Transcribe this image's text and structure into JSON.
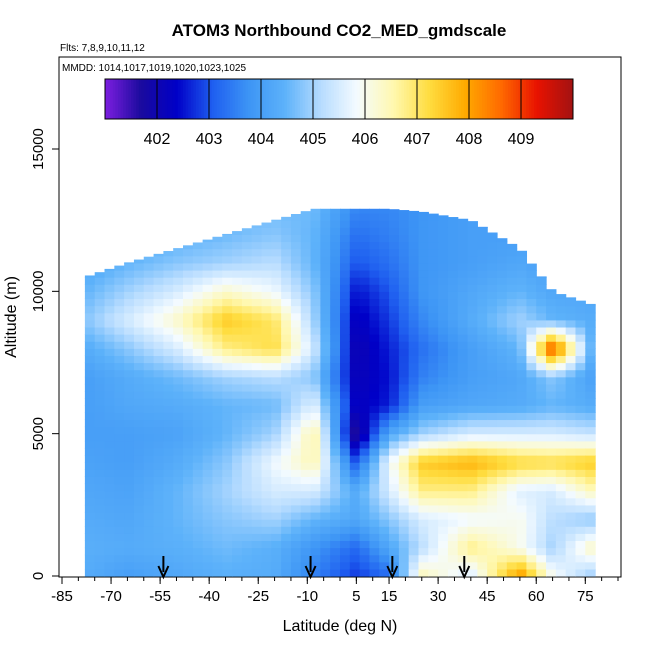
{
  "chart_data": {
    "type": "heatmap",
    "title": "ATOM3 Northbound CO2_MED_gmdscale",
    "subtitle_flights": "Flts: 7,8,9,10,11,12",
    "subtitle_dates": "MMDD: 1014,1017,1019,1020,1023,1025",
    "xlabel": "Latitude (deg N)",
    "ylabel": "Altitude (m)",
    "xlim": [
      -85,
      85
    ],
    "ylim": [
      0,
      18000
    ],
    "x_ticks": [
      -85,
      -70,
      -55,
      -40,
      -25,
      -10,
      5,
      15,
      30,
      45,
      60,
      75
    ],
    "y_ticks": [
      0,
      5000,
      10000,
      15000
    ],
    "colorbar": {
      "range": [
        401,
        410
      ],
      "ticks": [
        402,
        403,
        404,
        405,
        406,
        407,
        408,
        409
      ],
      "colors": [
        "#7d1fe0",
        "#1a0a9e",
        "#0000c8",
        "#1f5ff0",
        "#3d95f5",
        "#5db2fa",
        "#b7dcff",
        "#f4fbff",
        "#fff8b0",
        "#ffdd40",
        "#ffaa00",
        "#ff6a00",
        "#e81200",
        "#a31212"
      ]
    },
    "profile_arrows_lat": [
      -54,
      -9,
      16,
      38
    ],
    "grid": false,
    "curtain": {
      "lat_nodes": [
        -78,
        -65,
        -50,
        -35,
        -20,
        -8,
        5,
        15,
        25,
        40,
        55,
        65,
        78
      ],
      "alt_nodes": [
        0,
        1000,
        2000,
        3000,
        4000,
        5000,
        6000,
        7000,
        8000,
        9000,
        10000,
        11000,
        12000,
        13000
      ],
      "top_alt_by_lat": [
        10500,
        11000,
        11500,
        12000,
        12500,
        12900,
        12900,
        12900,
        12800,
        12500,
        11500,
        10000,
        9500
      ],
      "co2": [
        [
          404.3,
          404.0,
          404.2,
          404.4,
          404.3,
          403.5,
          402.8,
          403.2,
          406.5,
          405.5,
          408.2,
          406.0,
          404.8
        ],
        [
          404.4,
          404.3,
          404.4,
          404.6,
          404.4,
          403.8,
          403.2,
          404.2,
          405.2,
          406.8,
          406.0,
          405.0,
          406.5
        ],
        [
          404.3,
          404.2,
          404.5,
          404.8,
          405.0,
          404.5,
          404.2,
          404.8,
          405.5,
          405.8,
          406.0,
          405.2,
          404.8
        ],
        [
          404.2,
          404.1,
          404.5,
          405.0,
          405.5,
          405.5,
          404.3,
          405.5,
          406.8,
          406.8,
          405.6,
          405.5,
          406.5
        ],
        [
          404.1,
          404.0,
          404.3,
          404.8,
          405.8,
          406.5,
          403.0,
          405.8,
          407.5,
          407.8,
          407.3,
          407.2,
          407.5
        ],
        [
          404.0,
          404.0,
          404.1,
          404.5,
          405.0,
          406.6,
          401.5,
          404.2,
          405.0,
          405.5,
          405.5,
          405.5,
          405.3
        ],
        [
          404.0,
          404.2,
          404.3,
          404.5,
          404.6,
          405.6,
          402.2,
          402.6,
          404.0,
          404.2,
          404.3,
          404.5,
          404.3
        ],
        [
          404.0,
          404.3,
          404.6,
          405.0,
          405.2,
          404.8,
          402.1,
          402.5,
          403.5,
          404.0,
          404.2,
          404.8,
          404.0
        ],
        [
          404.3,
          404.8,
          405.5,
          406.8,
          407.2,
          405.4,
          402.0,
          402.6,
          403.3,
          404.0,
          404.5,
          409.0,
          404.0
        ],
        [
          404.8,
          405.5,
          406.3,
          407.5,
          407.0,
          405.0,
          402.2,
          402.8,
          403.6,
          404.3,
          405.0,
          404.5,
          404.3
        ],
        [
          404.5,
          405.0,
          405.5,
          406.3,
          405.8,
          404.8,
          402.5,
          403.0,
          403.8,
          404.2,
          404.5,
          404.2,
          404.2
        ],
        [
          404.2,
          404.5,
          404.8,
          405.0,
          405.2,
          404.5,
          403.0,
          403.3,
          403.8,
          404.0,
          404.2,
          404.0,
          404.0
        ],
        [
          404.0,
          404.2,
          404.4,
          404.6,
          404.8,
          404.5,
          403.3,
          403.5,
          403.8,
          404.0,
          404.0,
          404.0,
          404.0
        ],
        [
          404.0,
          404.1,
          404.3,
          404.5,
          404.6,
          404.6,
          403.6,
          403.6,
          403.8,
          404.0,
          404.0,
          404.0,
          404.0
        ]
      ]
    }
  }
}
